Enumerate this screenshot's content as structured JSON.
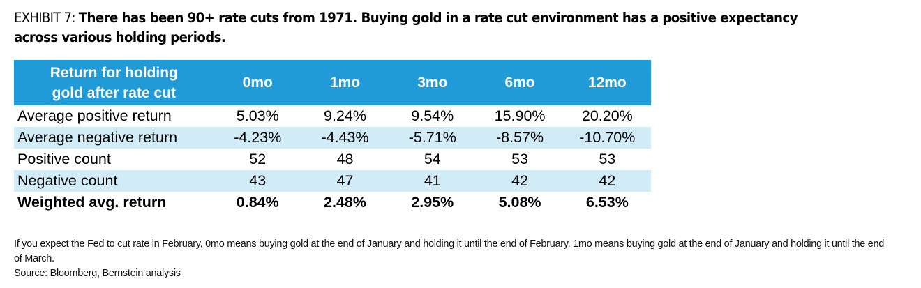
{
  "exhibit": {
    "label": "EXHIBIT 7: ",
    "headline": "There has been 90+ rate cuts from 1971. Buying gold in a rate cut environment has a positive expectancy across various holding periods."
  },
  "table": {
    "corner_header_line1": "Return for holding",
    "corner_header_line2": "gold after rate cut",
    "columns": [
      "0mo",
      "1mo",
      "3mo",
      "6mo",
      "12mo"
    ],
    "rows": [
      {
        "label": "Average positive return",
        "values": [
          "5.03%",
          "9.24%",
          "9.54%",
          "15.90%",
          "20.20%"
        ]
      },
      {
        "label": "Average negative return",
        "values": [
          "-4.23%",
          "-4.43%",
          "-5.71%",
          "-8.57%",
          "-10.70%"
        ]
      },
      {
        "label": "Positive count",
        "values": [
          "52",
          "48",
          "54",
          "53",
          "53"
        ]
      },
      {
        "label": "Negative count",
        "values": [
          "43",
          "47",
          "41",
          "42",
          "42"
        ]
      },
      {
        "label": "Weighted avg. return",
        "values": [
          "0.84%",
          "2.48%",
          "2.95%",
          "5.08%",
          "6.53%"
        ]
      }
    ],
    "colors": {
      "header_bg": "#209bd7",
      "header_text": "#ffffff",
      "shaded_row_bg": "#d1ebf7"
    }
  },
  "notes": {
    "explanation": "If you expect the Fed to cut rate in February, 0mo means buying gold at the end of January and holding it until the end of February. 1mo means buying gold at the end of January and holding it until the end of March.",
    "source": "Source: Bloomberg, Bernstein analysis"
  }
}
